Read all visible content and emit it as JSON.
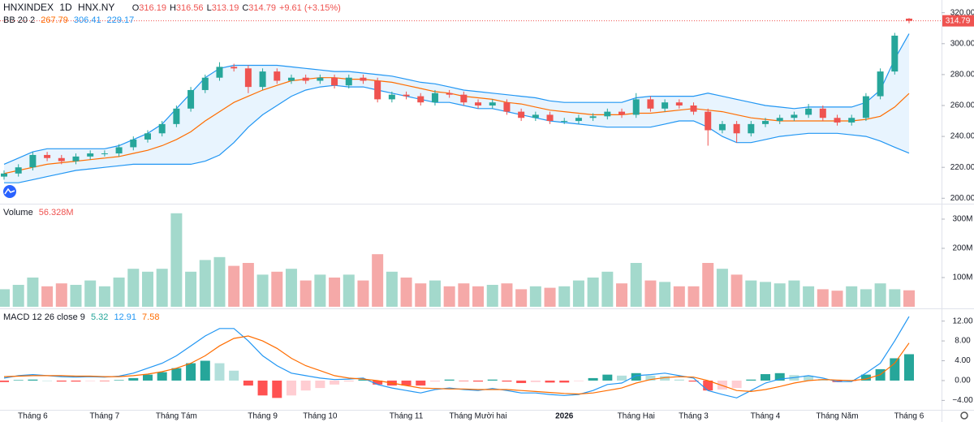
{
  "header": {
    "symbol": "HNXINDEX",
    "interval": "1D",
    "exchange": "HNX.NY",
    "ohlc_prefixes": [
      "O",
      "H",
      "L",
      "C"
    ],
    "change": "+9.61 (+3.15%)"
  },
  "chart_data": [
    {
      "type": "candlestick",
      "title": "BB 20 2",
      "up_color": "#26a69a",
      "down_color": "#ef5350",
      "band_fill": "rgba(33,150,243,0.10)",
      "open": [
        214,
        216,
        220,
        228,
        226,
        224,
        227,
        229,
        229,
        233,
        238,
        242,
        248,
        258,
        270,
        278,
        285,
        284,
        272,
        282,
        276,
        278,
        276,
        278,
        273,
        278,
        276,
        264,
        267,
        266,
        262,
        268,
        267,
        262,
        260,
        262,
        256,
        252,
        254,
        250,
        250,
        252,
        253,
        256,
        254,
        264,
        258,
        262,
        260,
        256,
        244,
        248,
        242,
        248,
        250,
        252,
        254,
        258,
        252,
        249,
        252,
        266,
        282,
        316.19
      ],
      "high": [
        218,
        222,
        230,
        230,
        228,
        229,
        231,
        231,
        235,
        240,
        244,
        250,
        260,
        272,
        280,
        288,
        287,
        286,
        284,
        284,
        280,
        280,
        280,
        280,
        280,
        280,
        278,
        269,
        269,
        268,
        270,
        270,
        269,
        264,
        264,
        264,
        258,
        256,
        256,
        252,
        254,
        255,
        258,
        258,
        268,
        266,
        264,
        264,
        262,
        258,
        250,
        250,
        250,
        252,
        254,
        256,
        261,
        260,
        254,
        254,
        268,
        284,
        307,
        316.56
      ],
      "low": [
        212,
        214,
        218,
        224,
        222,
        222,
        225,
        227,
        227,
        231,
        236,
        240,
        246,
        256,
        268,
        276,
        282,
        268,
        270,
        274,
        274,
        274,
        274,
        271,
        271,
        274,
        262,
        262,
        264,
        260,
        260,
        265,
        260,
        258,
        258,
        254,
        250,
        250,
        248,
        248,
        248,
        250,
        251,
        252,
        252,
        256,
        256,
        258,
        254,
        234,
        242,
        236,
        240,
        246,
        248,
        250,
        252,
        250,
        247,
        247,
        250,
        264,
        280,
        313.19
      ],
      "close": [
        216,
        220,
        228,
        226,
        224,
        227,
        229,
        229,
        233,
        238,
        242,
        248,
        258,
        270,
        278,
        285,
        284,
        272,
        282,
        276,
        278,
        276,
        278,
        273,
        278,
        276,
        264,
        267,
        266,
        262,
        268,
        267,
        262,
        260,
        262,
        256,
        252,
        254,
        250,
        250,
        252,
        253,
        256,
        254,
        264,
        258,
        262,
        260,
        256,
        244,
        248,
        242,
        248,
        250,
        252,
        254,
        258,
        252,
        249,
        252,
        266,
        282,
        305.18,
        314.79
      ],
      "series": [
        {
          "color": "#ff6d00",
          "values": [
            216,
            218,
            220,
            222,
            223,
            224,
            225,
            226,
            227,
            229,
            231,
            234,
            238,
            243,
            250,
            256,
            262,
            266,
            270,
            273,
            276,
            277,
            278,
            278,
            277,
            277,
            276,
            275,
            273,
            271,
            269,
            268,
            266,
            265,
            264,
            262,
            261,
            259,
            257,
            256,
            255,
            254,
            254,
            254,
            255,
            255,
            256,
            257,
            258,
            257,
            256,
            254,
            252,
            251,
            250,
            250,
            250,
            250,
            250,
            250,
            251,
            253,
            259,
            267.79
          ]
        },
        {
          "color": "#2196f3",
          "values": [
            222,
            226,
            230,
            232,
            232,
            232,
            232,
            232,
            234,
            238,
            242,
            248,
            258,
            268,
            278,
            284,
            286,
            286,
            286,
            286,
            285,
            284,
            283,
            282,
            282,
            281,
            280,
            279,
            277,
            275,
            274,
            272,
            270,
            269,
            268,
            267,
            266,
            265,
            263,
            262,
            262,
            262,
            262,
            262,
            265,
            266,
            266,
            266,
            266,
            268,
            266,
            264,
            262,
            260,
            259,
            258,
            259,
            259,
            259,
            259,
            262,
            270,
            290,
            306.41
          ]
        },
        {
          "color": "#2196f3",
          "values": [
            210,
            210,
            212,
            214,
            216,
            218,
            219,
            220,
            221,
            222,
            222,
            222,
            222,
            222,
            224,
            228,
            236,
            246,
            254,
            260,
            266,
            270,
            272,
            273,
            272,
            272,
            270,
            268,
            266,
            264,
            262,
            262,
            260,
            258,
            258,
            256,
            254,
            252,
            250,
            249,
            248,
            247,
            246,
            246,
            246,
            246,
            248,
            250,
            250,
            246,
            240,
            236,
            236,
            238,
            240,
            241,
            242,
            242,
            242,
            241,
            240,
            237,
            233,
            229.17
          ]
        }
      ],
      "ylim": [
        197,
        323
      ],
      "yticks": [
        {
          "value": 200,
          "label": "200.00"
        },
        {
          "value": 220,
          "label": "220.00"
        },
        {
          "value": 240,
          "label": "240.00"
        },
        {
          "value": 260,
          "label": "260.00"
        },
        {
          "value": 280,
          "label": "280.00"
        },
        {
          "value": 300,
          "label": "300.00"
        },
        {
          "value": 320,
          "label": "320.00"
        }
      ]
    },
    {
      "type": "bar",
      "title": "Volume",
      "value_label": "56.328M",
      "up_color": "#a3d9cc",
      "down_color": "#f5a9a8",
      "values": [
        60,
        75,
        100,
        70,
        80,
        75,
        90,
        70,
        100,
        130,
        120,
        130,
        320,
        120,
        160,
        170,
        140,
        150,
        110,
        120,
        130,
        90,
        110,
        100,
        110,
        90,
        180,
        120,
        100,
        80,
        90,
        70,
        80,
        70,
        75,
        80,
        60,
        70,
        65,
        70,
        90,
        100,
        120,
        80,
        150,
        90,
        85,
        70,
        70,
        150,
        130,
        110,
        90,
        85,
        80,
        90,
        70,
        60,
        55,
        70,
        60,
        80,
        60,
        56.328
      ],
      "ylim": [
        0,
        350
      ],
      "yticks": [
        {
          "value": 100,
          "label": "100M"
        },
        {
          "value": 200,
          "label": "200M"
        },
        {
          "value": 300,
          "label": "300M"
        }
      ]
    },
    {
      "type": "macd",
      "title": "MACD 12 26 close 9",
      "categories": [
        null,
        null,
        "Tháng 6",
        null,
        null,
        null,
        null,
        "Tháng 7",
        null,
        null,
        null,
        null,
        "Tháng Tám",
        null,
        null,
        null,
        null,
        null,
        "Tháng 9",
        null,
        null,
        null,
        "Tháng 10",
        null,
        null,
        null,
        null,
        null,
        "Tháng 11",
        null,
        null,
        null,
        null,
        "Tháng Mười hai",
        null,
        null,
        null,
        null,
        null,
        "2026",
        null,
        null,
        null,
        null,
        "Tháng Hai",
        null,
        null,
        null,
        "Tháng 3",
        null,
        null,
        null,
        null,
        "Tháng 4",
        null,
        null,
        null,
        null,
        "Tháng Năm",
        null,
        null,
        null,
        null,
        "Tháng 6"
      ],
      "histogram_colors": {
        "positive_rising": "#26a69a",
        "positive_falling": "#b2dfdb",
        "negative_falling": "#ff5252",
        "negative_rising": "#ffcdd2"
      },
      "series": [
        {
          "color": "#26a69a",
          "kind": "histogram",
          "values": [
            -0.3,
            0.1,
            0.2,
            0.0,
            -0.2,
            -0.2,
            -0.1,
            -0.1,
            0.1,
            0.5,
            1.2,
            1.7,
            2.5,
            3.5,
            4.0,
            3.5,
            2.0,
            -1.0,
            -3.0,
            -3.5,
            -3.0,
            -2.0,
            -1.5,
            -0.8,
            -0.2,
            0.2,
            -0.8,
            -1.0,
            -1.0,
            -1.0,
            -0.2,
            0.2,
            -0.1,
            -0.2,
            0.2,
            -0.2,
            -0.5,
            -0.3,
            -0.4,
            -0.4,
            -0.1,
            0.5,
            1.2,
            1.0,
            1.5,
            1.0,
            0.9,
            0.2,
            -0.2,
            -2.0,
            -1.8,
            -1.5,
            0.2,
            1.3,
            1.5,
            1.1,
            1.0,
            0.3,
            -0.3,
            -0.2,
            1.2,
            2.3,
            4.5,
            5.32
          ]
        },
        {
          "color": "#2196f3",
          "kind": "line",
          "values": [
            0.5,
            1.0,
            1.2,
            1.0,
            0.8,
            0.7,
            0.8,
            0.7,
            0.9,
            1.5,
            2.5,
            3.5,
            5.0,
            7.0,
            9.0,
            10.5,
            10.5,
            8.0,
            5.0,
            3.0,
            1.5,
            1.0,
            0.5,
            0.2,
            0.3,
            0.5,
            -0.8,
            -1.5,
            -2.0,
            -2.5,
            -1.8,
            -1.5,
            -1.8,
            -2.0,
            -1.6,
            -2.0,
            -2.5,
            -2.5,
            -2.8,
            -3.0,
            -2.8,
            -2.0,
            -0.8,
            -0.5,
            1.0,
            1.2,
            1.5,
            1.0,
            0.5,
            -2.0,
            -2.8,
            -3.5,
            -2.0,
            -0.5,
            0.3,
            0.6,
            1.0,
            0.5,
            -0.2,
            -0.2,
            1.5,
            3.5,
            8.0,
            12.91
          ]
        },
        {
          "color": "#ff6d00",
          "kind": "line",
          "values": [
            0.8,
            0.9,
            1.0,
            1.0,
            1.0,
            0.9,
            0.9,
            0.8,
            0.8,
            1.0,
            1.3,
            1.8,
            2.5,
            3.5,
            5.0,
            7.0,
            8.5,
            9.0,
            8.0,
            6.5,
            4.5,
            3.0,
            2.0,
            1.0,
            0.5,
            0.3,
            0.0,
            -0.5,
            -1.0,
            -1.5,
            -1.6,
            -1.7,
            -1.7,
            -1.8,
            -1.8,
            -1.8,
            -2.0,
            -2.2,
            -2.4,
            -2.6,
            -2.7,
            -2.5,
            -2.0,
            -1.5,
            -0.5,
            0.2,
            0.6,
            0.8,
            0.7,
            0.0,
            -1.0,
            -2.0,
            -2.2,
            -1.8,
            -1.2,
            -0.5,
            0.0,
            0.2,
            0.1,
            0.0,
            0.3,
            1.2,
            3.5,
            7.58
          ]
        }
      ],
      "ylim": [
        -5.9,
        14.4
      ],
      "yticks": [
        {
          "value": -4,
          "label": "−4.00"
        },
        {
          "value": 0,
          "label": "0.00"
        },
        {
          "value": 4,
          "label": "4.00"
        },
        {
          "value": 8,
          "label": "8.00"
        },
        {
          "value": 12,
          "label": "12.00"
        }
      ]
    }
  ]
}
